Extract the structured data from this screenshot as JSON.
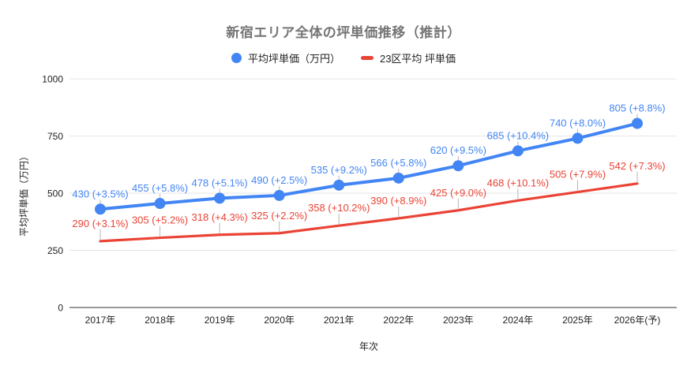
{
  "chart_data": {
    "type": "line",
    "title": "新宿エリア全体の坪単価推移（推計）",
    "xlabel": "年次",
    "ylabel": "平均坪単価（万円）",
    "categories": [
      "2017年",
      "2018年",
      "2019年",
      "2020年",
      "2021年",
      "2022年",
      "2023年",
      "2024年",
      "2025年",
      "2026年(予)"
    ],
    "ylim": [
      0,
      1000
    ],
    "y_ticks": [
      0,
      250,
      500,
      750,
      1000
    ],
    "grid": "horizontal-only",
    "legend_position": "top",
    "series": [
      {
        "name": "平均坪単価（万円）",
        "color": "#4285F4",
        "marker": "circle",
        "line_width": 4,
        "values": [
          430,
          455,
          478,
          490,
          535,
          566,
          620,
          685,
          740,
          805
        ],
        "labels": [
          "430 (+3.5%)",
          "455 (+5.8%)",
          "478 (+5.1%)",
          "490 (+2.5%)",
          "535 (+9.2%)",
          "566 (+5.8%)",
          "620 (+9.5%)",
          "685 (+10.4%)",
          "740 (+8.0%)",
          "805 (+8.8%)"
        ]
      },
      {
        "name": "23区平均 坪単価",
        "color": "#EA4335",
        "marker": "none",
        "line_width": 3.2,
        "values": [
          290,
          305,
          318,
          325,
          358,
          390,
          425,
          468,
          505,
          542
        ],
        "labels": [
          "290 (+3.1%)",
          "305 (+5.2%)",
          "318 (+4.3%)",
          "325 (+2.2%)",
          "358 (+10.2%)",
          "390 (+8.9%)",
          "425 (+9.0%)",
          "468 (+10.1%)",
          "505 (+7.9%)",
          "542 (+7.3%)"
        ]
      }
    ],
    "style": {
      "title_color": "#757575",
      "tick_label_color": "#222222",
      "gridline_color": "#e6e6e6",
      "axis_line_color": "#333333",
      "leader_line_color": "#b7b7b7",
      "background": "#ffffff"
    }
  }
}
